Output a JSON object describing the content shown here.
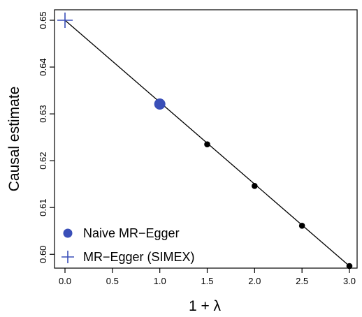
{
  "chart_data": {
    "type": "scatter",
    "xlabel": "1 + λ",
    "ylabel": "Causal estimate",
    "xlim": [
      0.0,
      3.0
    ],
    "ylim": [
      0.5975,
      0.65
    ],
    "x_ticks": [
      "0.0",
      "0.5",
      "1.0",
      "1.5",
      "2.0",
      "2.5",
      "3.0"
    ],
    "y_ticks": [
      "0.60",
      "0.61",
      "0.62",
      "0.63",
      "0.64",
      "0.65"
    ],
    "grid": false,
    "legend_position": "bottom-left",
    "series": [
      {
        "name": "Naive MR−Egger",
        "marker": "filled-circle",
        "color": "#3a4fb8",
        "points": [
          [
            1.0,
            0.6321
          ]
        ]
      },
      {
        "name": "MR−Egger (SIMEX)",
        "marker": "plus",
        "color": "#3a4fb8",
        "points": [
          [
            0.0,
            0.65
          ]
        ]
      }
    ],
    "simulation_points": [
      [
        1.5,
        0.6235
      ],
      [
        2.0,
        0.6146
      ],
      [
        2.5,
        0.6061
      ],
      [
        3.0,
        0.5975
      ]
    ],
    "fit_line": [
      [
        0.0,
        0.65
      ],
      [
        3.0,
        0.5975
      ]
    ]
  }
}
